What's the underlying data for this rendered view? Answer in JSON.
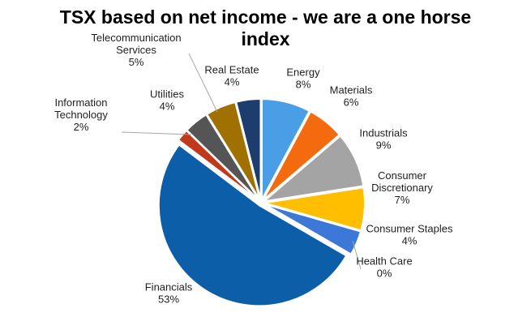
{
  "chart_data": {
    "type": "pie",
    "title_lines": [
      "TSX based on net income  - we are a one horse",
      "index"
    ],
    "slices": [
      {
        "name": "Energy",
        "value": 8,
        "label_lines": [
          "Energy",
          "8%"
        ],
        "color": "#4a9ee6"
      },
      {
        "name": "Materials",
        "value": 6,
        "label_lines": [
          "Materials",
          "6%"
        ],
        "color": "#f46a0f"
      },
      {
        "name": "Industrials",
        "value": 9,
        "label_lines": [
          "Industrials",
          "9%"
        ],
        "color": "#a4a4a4"
      },
      {
        "name": "Consumer Discretionary",
        "value": 7,
        "label_lines": [
          "Consumer",
          "Discretionary",
          "7%"
        ],
        "color": "#ffbf00"
      },
      {
        "name": "Consumer Staples",
        "value": 4,
        "label_lines": [
          "Consumer Staples",
          "4%"
        ],
        "color": "#3b78d8"
      },
      {
        "name": "Health Care",
        "value": 0,
        "label_lines": [
          "Health Care",
          "0%"
        ],
        "color": "#6aa84f"
      },
      {
        "name": "Financials",
        "value": 53,
        "label_lines": [
          "Financials",
          "53%"
        ],
        "color": "#0c5ea8"
      },
      {
        "name": "Information Technology",
        "value": 2,
        "label_lines": [
          "Information",
          "Technology",
          "2%"
        ],
        "color": "#c0391b"
      },
      {
        "name": "Utilities",
        "value": 4,
        "label_lines": [
          "Utilities",
          "4%"
        ],
        "color": "#555555"
      },
      {
        "name": "Telecommunication Services",
        "value": 5,
        "label_lines": [
          "Telecommunication",
          "Services",
          "5%"
        ],
        "color": "#a07000"
      },
      {
        "name": "Real Estate",
        "value": 4,
        "label_lines": [
          "Real Estate",
          "4%"
        ],
        "color": "#1d3d6e"
      }
    ],
    "legend": "none",
    "data_labels": "outside with leader lines"
  }
}
